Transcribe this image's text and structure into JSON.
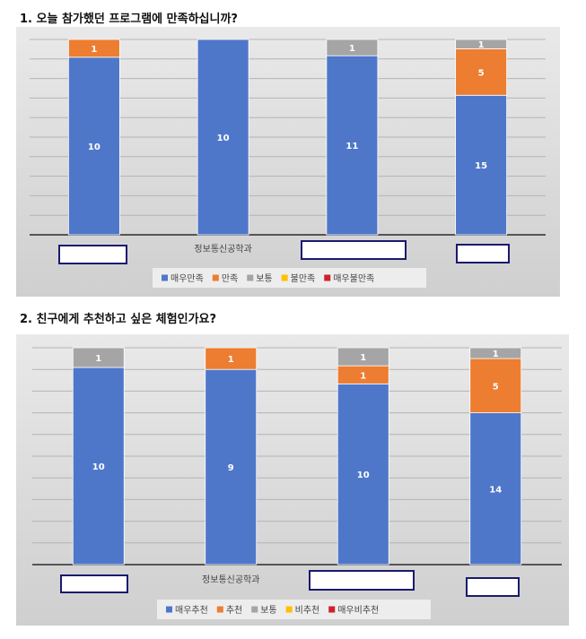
{
  "headings": [
    "1. 오늘 참가했던 프로그램에 만족하십니까?",
    "2. 친구에게 추천하고 싶은 체험인가요?"
  ],
  "chart_data": [
    {
      "type": "bar",
      "stacked": "percent",
      "categories": [
        null,
        "정보통신공학과",
        null,
        null
      ],
      "ylim": [
        0,
        100
      ],
      "yticks": [
        0,
        10,
        20,
        30,
        40,
        50,
        60,
        70,
        80,
        90,
        100
      ],
      "ytick_labels": false,
      "grid": true,
      "legend": "bottom",
      "series": [
        {
          "name": "매우만족",
          "color": "#4f77c9",
          "values": [
            10,
            10,
            11,
            15
          ]
        },
        {
          "name": "만족",
          "color": "#ed7d31",
          "values": [
            1,
            0,
            0,
            5
          ]
        },
        {
          "name": "보통",
          "color": "#a5a5a5",
          "values": [
            0,
            0,
            1,
            1
          ]
        },
        {
          "name": "불만족",
          "color": "#ffc000",
          "values": [
            0,
            0,
            0,
            0
          ]
        },
        {
          "name": "매우불만족",
          "color": "#d0202a",
          "values": [
            0,
            0,
            0,
            0
          ]
        }
      ]
    },
    {
      "type": "bar",
      "stacked": "percent",
      "categories": [
        null,
        "정보통신공학과",
        null,
        null
      ],
      "ylim": [
        0,
        100
      ],
      "yticks": [
        0,
        10,
        20,
        30,
        40,
        50,
        60,
        70,
        80,
        90,
        100
      ],
      "ytick_labels": false,
      "grid": true,
      "legend": "bottom",
      "series": [
        {
          "name": "매우추천",
          "color": "#4f77c9",
          "values": [
            10,
            9,
            10,
            14
          ]
        },
        {
          "name": "추천",
          "color": "#ed7d31",
          "values": [
            0,
            1,
            1,
            5
          ]
        },
        {
          "name": "보통",
          "color": "#a5a5a5",
          "values": [
            1,
            0,
            1,
            1
          ]
        },
        {
          "name": "비추천",
          "color": "#ffc000",
          "values": [
            0,
            0,
            0,
            0
          ]
        },
        {
          "name": "매우비추천",
          "color": "#d0202a",
          "values": [
            0,
            0,
            0,
            0
          ]
        }
      ]
    }
  ]
}
